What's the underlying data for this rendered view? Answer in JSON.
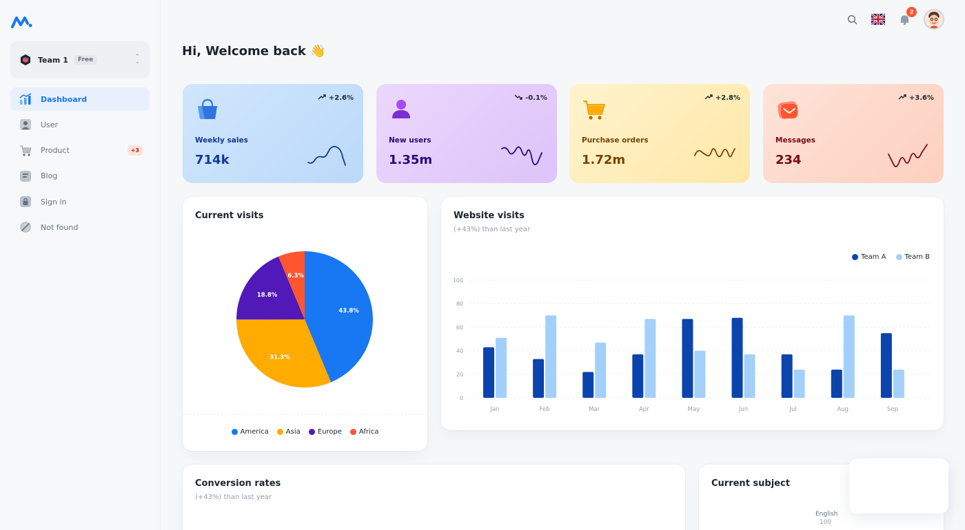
{
  "team": {
    "name": "Team 1",
    "plan": "Free"
  },
  "nav": {
    "items": [
      {
        "label": "Dashboard",
        "icon": "dashboard-icon"
      },
      {
        "label": "User",
        "icon": "user-icon"
      },
      {
        "label": "Product",
        "icon": "cart-icon",
        "badge": "+3"
      },
      {
        "label": "Blog",
        "icon": "blog-icon"
      },
      {
        "label": "Sign in",
        "icon": "lock-icon"
      },
      {
        "label": "Not found",
        "icon": "disabled-icon"
      }
    ]
  },
  "header": {
    "notifications": "2"
  },
  "welcome": "Hi, Welcome back 👋",
  "stats": [
    {
      "title": "Weekly sales",
      "value": "714k",
      "trend": "+2.6%",
      "color": "#103996"
    },
    {
      "title": "New users",
      "value": "1.35m",
      "trend": "-0.1%",
      "color": "#27097a"
    },
    {
      "title": "Purchase orders",
      "value": "1.72m",
      "trend": "+2.8%",
      "color": "#7a4100"
    },
    {
      "title": "Messages",
      "value": "234",
      "trend": "+3.6%",
      "color": "#7a0916"
    }
  ],
  "current_visits": {
    "title": "Current visits",
    "legend": [
      "America",
      "Asia",
      "Europe",
      "Africa"
    ]
  },
  "website_visits": {
    "title": "Website visits",
    "subtitle": "(+43%) than last year"
  },
  "conversion": {
    "title": "Conversion rates",
    "subtitle": "(+43%) than last year"
  },
  "subject": {
    "title": "Current subject",
    "label": "English",
    "value": "100"
  },
  "chart_data": [
    {
      "type": "pie",
      "title": "Current visits",
      "categories": [
        "America",
        "Asia",
        "Europe",
        "Africa"
      ],
      "values": [
        43.8,
        31.3,
        18.8,
        6.3
      ],
      "labels": [
        "43.8%",
        "31.3%",
        "18.8%",
        "6.3%"
      ],
      "colors": [
        "#1877f2",
        "#ffab00",
        "#5119b7",
        "#ff5630"
      ]
    },
    {
      "type": "bar",
      "title": "Website visits",
      "categories": [
        "Jan",
        "Feb",
        "Mar",
        "Apr",
        "May",
        "Jun",
        "Jul",
        "Aug",
        "Sep"
      ],
      "series": [
        {
          "name": "Team A",
          "values": [
            43,
            33,
            22,
            37,
            67,
            68,
            37,
            24,
            55
          ],
          "color": "#0c44ae"
        },
        {
          "name": "Team B",
          "values": [
            51,
            70,
            47,
            67,
            40,
            37,
            24,
            70,
            24
          ],
          "color": "#a3d0fb"
        }
      ],
      "ylim": [
        0,
        100
      ],
      "yticks": [
        "0",
        "20",
        "40",
        "60",
        "80",
        "100"
      ],
      "grid": true,
      "legend": "top-right"
    }
  ]
}
